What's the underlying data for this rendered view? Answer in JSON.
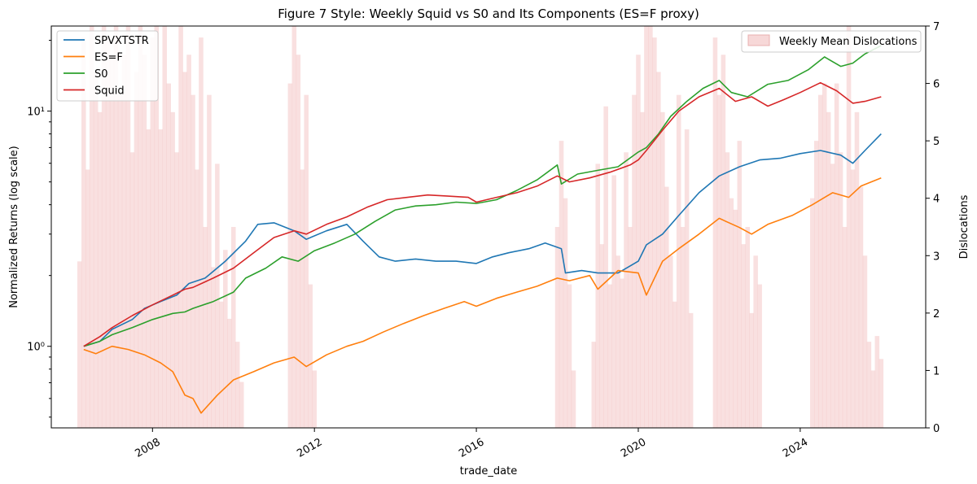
{
  "chart_data": {
    "type": "line",
    "title": "Figure 7 Style: Weekly Squid vs S0 and Its Components (ES=F proxy)",
    "xlabel": "trade_date",
    "ylabel": "Normalized Returns (log scale)",
    "y2label": "Dislocations",
    "yscale": "log",
    "xlim": [
      2005.5,
      2027.1
    ],
    "ylim": [
      0.45,
      23
    ],
    "y2lim": [
      0,
      7
    ],
    "x_ticks": [
      2008,
      2012,
      2016,
      2020,
      2024
    ],
    "x_tick_labels": [
      "2008",
      "2012",
      "2016",
      "2020",
      "2024"
    ],
    "y_ticks": [
      1,
      10
    ],
    "y_tick_labels": [
      "10⁰",
      "10¹"
    ],
    "y2_ticks": [
      0,
      1,
      2,
      3,
      4,
      5,
      6,
      7
    ],
    "y2_tick_labels": [
      "0",
      "1",
      "2",
      "3",
      "4",
      "5",
      "6",
      "7"
    ],
    "grid": false,
    "legend_left": {
      "placement": "top-left",
      "entries": [
        "SPVXTSTR",
        "ES=F",
        "S0",
        "Squid"
      ]
    },
    "legend_right": {
      "placement": "top-right",
      "entries": [
        "Weekly Mean Dislocations"
      ]
    },
    "series": [
      {
        "name": "SPVXTSTR",
        "color": "#1f77b4",
        "x": [
          2006.3,
          2006.7,
          2007.0,
          2007.5,
          2007.8,
          2008.2,
          2008.6,
          2008.9,
          2009.3,
          2009.8,
          2010.3,
          2010.6,
          2011.0,
          2011.5,
          2011.8,
          2012.3,
          2012.8,
          2013.2,
          2013.6,
          2014.0,
          2014.5,
          2015.0,
          2015.5,
          2016.0,
          2016.4,
          2016.8,
          2017.3,
          2017.7,
          2018.1,
          2018.2,
          2018.6,
          2019.0,
          2019.5,
          2020.0,
          2020.2,
          2020.6,
          2021.0,
          2021.5,
          2022.0,
          2022.5,
          2023.0,
          2023.5,
          2024.0,
          2024.5,
          2025.0,
          2025.3,
          2025.6,
          2026.0
        ],
        "y": [
          1.0,
          1.05,
          1.18,
          1.3,
          1.45,
          1.55,
          1.65,
          1.85,
          1.95,
          2.3,
          2.8,
          3.3,
          3.35,
          3.1,
          2.85,
          3.1,
          3.3,
          2.8,
          2.4,
          2.3,
          2.35,
          2.3,
          2.3,
          2.25,
          2.4,
          2.5,
          2.6,
          2.75,
          2.6,
          2.05,
          2.1,
          2.05,
          2.05,
          2.3,
          2.7,
          3.0,
          3.6,
          4.5,
          5.3,
          5.8,
          6.2,
          6.3,
          6.6,
          6.8,
          6.5,
          6.0,
          6.8,
          8.0
        ]
      },
      {
        "name": "ES=F",
        "color": "#ff7f0e",
        "x": [
          2006.3,
          2006.6,
          2007.0,
          2007.4,
          2007.8,
          2008.2,
          2008.5,
          2008.8,
          2009.0,
          2009.2,
          2009.6,
          2010.0,
          2010.5,
          2011.0,
          2011.5,
          2011.8,
          2012.3,
          2012.8,
          2013.2,
          2013.7,
          2014.2,
          2014.7,
          2015.2,
          2015.7,
          2016.0,
          2016.5,
          2017.0,
          2017.5,
          2018.0,
          2018.3,
          2018.8,
          2019.0,
          2019.5,
          2020.0,
          2020.2,
          2020.6,
          2021.0,
          2021.5,
          2022.0,
          2022.5,
          2022.8,
          2023.2,
          2023.8,
          2024.3,
          2024.8,
          2025.2,
          2025.5,
          2026.0
        ],
        "y": [
          0.97,
          0.93,
          1.0,
          0.97,
          0.92,
          0.85,
          0.78,
          0.62,
          0.6,
          0.52,
          0.62,
          0.72,
          0.78,
          0.85,
          0.9,
          0.82,
          0.92,
          1.0,
          1.05,
          1.15,
          1.25,
          1.35,
          1.45,
          1.55,
          1.48,
          1.6,
          1.7,
          1.8,
          1.95,
          1.9,
          2.0,
          1.75,
          2.1,
          2.05,
          1.65,
          2.3,
          2.6,
          3.0,
          3.5,
          3.2,
          3.0,
          3.3,
          3.6,
          4.0,
          4.5,
          4.3,
          4.8,
          5.2
        ]
      },
      {
        "name": "S0",
        "color": "#2ca02c",
        "x": [
          2006.3,
          2006.7,
          2007.0,
          2007.5,
          2008.0,
          2008.5,
          2008.8,
          2009.0,
          2009.5,
          2010.0,
          2010.3,
          2010.8,
          2011.2,
          2011.6,
          2012.0,
          2012.5,
          2013.0,
          2013.5,
          2014.0,
          2014.5,
          2015.0,
          2015.5,
          2016.0,
          2016.5,
          2017.0,
          2017.5,
          2018.0,
          2018.1,
          2018.5,
          2019.0,
          2019.5,
          2020.0,
          2020.2,
          2020.5,
          2020.8,
          2021.2,
          2021.6,
          2022.0,
          2022.3,
          2022.7,
          2023.2,
          2023.7,
          2024.2,
          2024.6,
          2025.0,
          2025.3,
          2025.6,
          2026.0
        ],
        "y": [
          1.0,
          1.05,
          1.12,
          1.2,
          1.3,
          1.38,
          1.4,
          1.45,
          1.55,
          1.7,
          1.95,
          2.15,
          2.4,
          2.3,
          2.55,
          2.75,
          3.0,
          3.4,
          3.8,
          3.95,
          4.0,
          4.1,
          4.05,
          4.2,
          4.6,
          5.1,
          5.9,
          4.9,
          5.4,
          5.6,
          5.8,
          6.7,
          7.0,
          8.0,
          9.5,
          11.0,
          12.5,
          13.5,
          12.0,
          11.5,
          13.0,
          13.5,
          15.0,
          17.0,
          15.5,
          16.0,
          17.5,
          19.0
        ]
      },
      {
        "name": "Squid",
        "color": "#d62728",
        "x": [
          2006.3,
          2006.7,
          2007.0,
          2007.5,
          2008.0,
          2008.5,
          2008.8,
          2009.0,
          2009.5,
          2010.0,
          2010.5,
          2011.0,
          2011.5,
          2011.8,
          2012.3,
          2012.8,
          2013.3,
          2013.8,
          2014.3,
          2014.8,
          2015.3,
          2015.8,
          2016.0,
          2016.5,
          2017.0,
          2017.5,
          2018.0,
          2018.3,
          2018.8,
          2019.3,
          2019.8,
          2020.0,
          2020.2,
          2020.6,
          2021.0,
          2021.5,
          2022.0,
          2022.4,
          2022.8,
          2023.2,
          2023.6,
          2024.0,
          2024.5,
          2024.9,
          2025.3,
          2025.6,
          2026.0
        ],
        "y": [
          1.0,
          1.1,
          1.2,
          1.35,
          1.5,
          1.65,
          1.75,
          1.78,
          1.95,
          2.15,
          2.5,
          2.9,
          3.1,
          3.0,
          3.3,
          3.55,
          3.9,
          4.2,
          4.3,
          4.4,
          4.35,
          4.3,
          4.1,
          4.3,
          4.5,
          4.8,
          5.3,
          5.0,
          5.2,
          5.5,
          5.9,
          6.2,
          6.8,
          8.3,
          10.0,
          11.5,
          12.5,
          11.0,
          11.5,
          10.5,
          11.2,
          12.0,
          13.2,
          12.2,
          10.8,
          11.0,
          11.5
        ]
      }
    ],
    "dislocations": {
      "name": "Weekly Mean Dislocations",
      "color": "#f4c7c7",
      "x": [
        2006.2,
        2006.3,
        2006.4,
        2006.5,
        2006.6,
        2006.7,
        2006.8,
        2006.9,
        2007.0,
        2007.1,
        2007.2,
        2007.3,
        2007.4,
        2007.5,
        2007.6,
        2007.7,
        2007.8,
        2007.9,
        2008.0,
        2008.1,
        2008.2,
        2008.3,
        2008.4,
        2008.5,
        2008.6,
        2008.7,
        2008.8,
        2008.9,
        2009.0,
        2009.1,
        2009.2,
        2009.3,
        2009.4,
        2009.5,
        2009.6,
        2009.7,
        2009.8,
        2009.9,
        2010.0,
        2010.1,
        2010.2,
        2011.4,
        2011.5,
        2011.6,
        2011.7,
        2011.8,
        2011.9,
        2012.0,
        2018.0,
        2018.1,
        2018.2,
        2018.3,
        2018.4,
        2018.9,
        2019.0,
        2019.1,
        2019.2,
        2019.3,
        2019.4,
        2019.5,
        2019.6,
        2019.7,
        2019.8,
        2019.9,
        2020.0,
        2020.1,
        2020.2,
        2020.3,
        2020.4,
        2020.5,
        2020.6,
        2020.7,
        2020.8,
        2020.9,
        2021.0,
        2021.1,
        2021.2,
        2021.3,
        2021.9,
        2022.0,
        2022.1,
        2022.2,
        2022.3,
        2022.4,
        2022.5,
        2022.6,
        2022.7,
        2022.8,
        2022.9,
        2023.0,
        2024.3,
        2024.4,
        2024.5,
        2024.6,
        2024.7,
        2024.8,
        2024.9,
        2025.0,
        2025.1,
        2025.2,
        2025.3,
        2025.4,
        2025.5,
        2025.6,
        2025.7,
        2025.8,
        2025.9,
        2026.0
      ],
      "y": [
        2.9,
        6.8,
        4.5,
        7.0,
        6.2,
        5.5,
        7.0,
        6.8,
        6.5,
        7.0,
        5.8,
        6.5,
        7.0,
        4.8,
        6.2,
        7.0,
        6.5,
        5.2,
        6.8,
        7.0,
        5.2,
        7.0,
        6.0,
        5.5,
        4.8,
        7.0,
        6.2,
        6.5,
        5.8,
        4.5,
        6.8,
        3.5,
        5.8,
        2.8,
        4.6,
        2.2,
        3.1,
        1.9,
        3.5,
        1.5,
        0.8,
        6.0,
        7.0,
        6.5,
        4.5,
        5.8,
        2.5,
        1.0,
        3.5,
        5.0,
        4.0,
        2.5,
        1.0,
        1.5,
        4.6,
        3.2,
        5.6,
        2.5,
        4.4,
        3.0,
        2.6,
        4.8,
        3.5,
        5.8,
        6.5,
        5.5,
        7.0,
        7.0,
        6.8,
        6.2,
        5.5,
        4.2,
        3.0,
        2.2,
        5.8,
        3.5,
        5.2,
        2.0,
        6.8,
        5.8,
        6.5,
        4.8,
        4.0,
        3.8,
        5.0,
        3.2,
        3.5,
        2.0,
        3.0,
        2.5,
        4.0,
        5.0,
        5.8,
        6.0,
        5.5,
        4.6,
        6.0,
        4.8,
        3.5,
        7.0,
        4.5,
        5.5,
        4.2,
        3.0,
        1.5,
        1.0,
        1.6,
        1.2
      ]
    }
  }
}
